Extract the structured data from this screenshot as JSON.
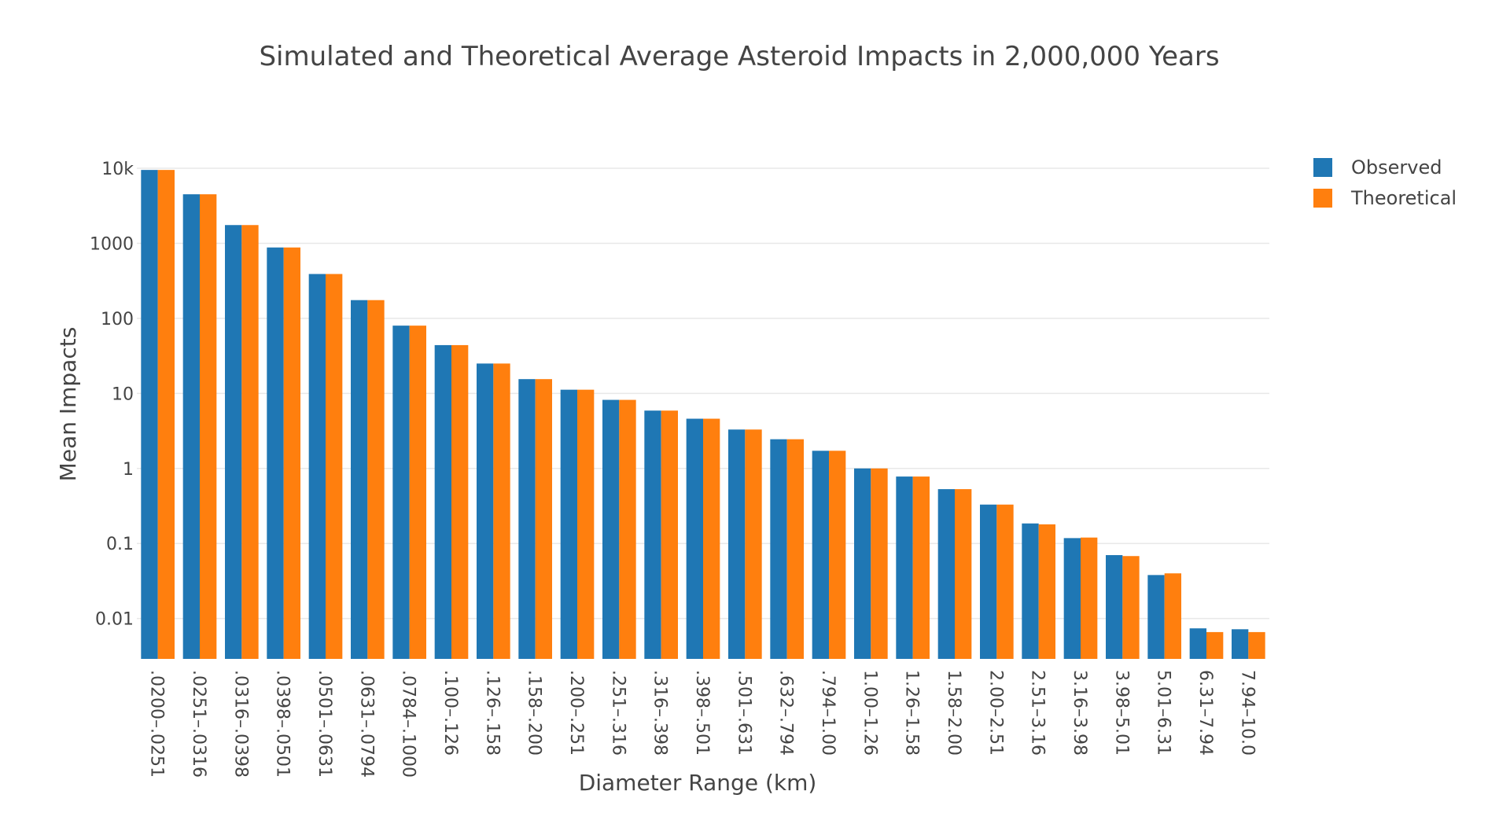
{
  "chart_data": {
    "type": "bar",
    "title": "Simulated and Theoretical Average Asteroid Impacts in 2,000,000 Years",
    "xlabel": "Diameter Range (km)",
    "ylabel": "Mean Impacts",
    "y_scale": "log",
    "ylim": [
      0.0029,
      10000
    ],
    "y_ticks": [
      {
        "value": 0.01,
        "label": "0.01"
      },
      {
        "value": 0.1,
        "label": "0.1"
      },
      {
        "value": 1,
        "label": "1"
      },
      {
        "value": 10,
        "label": "10"
      },
      {
        "value": 100,
        "label": "100"
      },
      {
        "value": 1000,
        "label": "1000"
      },
      {
        "value": 10000,
        "label": "10k"
      }
    ],
    "grid": true,
    "legend_position": "top-right",
    "categories": [
      ".0200–.0251",
      ".0251–.0316",
      ".0316–.0398",
      ".0398–.0501",
      ".0501–.0631",
      ".0631–.0794",
      ".0784–.1000",
      ".100–.126",
      ".126–.158",
      ".158–.200",
      ".200–.251",
      ".251–.316",
      ".316–.398",
      ".398–.501",
      ".501–.631",
      ".632–.794",
      ".794–1.00",
      "1.00–1.26",
      "1.26–1.58",
      "1.58–2.00",
      "2.00–2.51",
      "2.51–3.16",
      "3.16–3.98",
      "3.98–5.01",
      "5.01–6.31",
      "6.31–7.94",
      "7.94–10.0"
    ],
    "series": [
      {
        "name": "Observed",
        "color": "#1f77b4",
        "values": [
          9500,
          4500,
          1750,
          880,
          390,
          175,
          80,
          44,
          25,
          15.5,
          11.2,
          8.2,
          5.9,
          4.6,
          3.3,
          2.45,
          1.72,
          1.0,
          0.78,
          0.53,
          0.33,
          0.185,
          0.118,
          0.07,
          0.038,
          0.0074,
          0.0072
        ]
      },
      {
        "name": "Theoretical",
        "color": "#ff7f0e",
        "values": [
          9500,
          4500,
          1750,
          880,
          390,
          175,
          80,
          44,
          25,
          15.5,
          11.2,
          8.2,
          5.9,
          4.6,
          3.3,
          2.45,
          1.72,
          1.0,
          0.78,
          0.53,
          0.33,
          0.18,
          0.12,
          0.068,
          0.04,
          0.0066,
          0.0066
        ]
      }
    ]
  }
}
